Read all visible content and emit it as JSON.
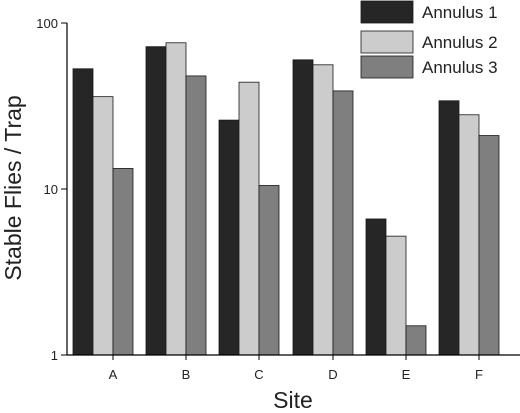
{
  "chart_data": {
    "type": "bar",
    "title": "",
    "xlabel": "Site",
    "ylabel": "Stable Flies / Trap",
    "yscale": "log",
    "ylim": [
      1,
      100
    ],
    "yticks": [
      1,
      10,
      100
    ],
    "ytick_labels": [
      "1",
      "10",
      "100"
    ],
    "categories": [
      "A",
      "B",
      "C",
      "D",
      "E",
      "F"
    ],
    "series": [
      {
        "name": "Annulus 1",
        "color": "#262626",
        "values": [
          53,
          72,
          26,
          60,
          6.6,
          34
        ]
      },
      {
        "name": "Annulus 2",
        "color": "#cccccc",
        "values": [
          36,
          76,
          44,
          56,
          5.2,
          28
        ]
      },
      {
        "name": "Annulus 3",
        "color": "#7f7f7f",
        "values": [
          13.3,
          48,
          10.5,
          39,
          1.5,
          21
        ]
      }
    ],
    "legend": {
      "position": "top-right",
      "labels": [
        "Annulus 1",
        "Annulus 2",
        "Annulus 3"
      ]
    },
    "grid": false
  }
}
